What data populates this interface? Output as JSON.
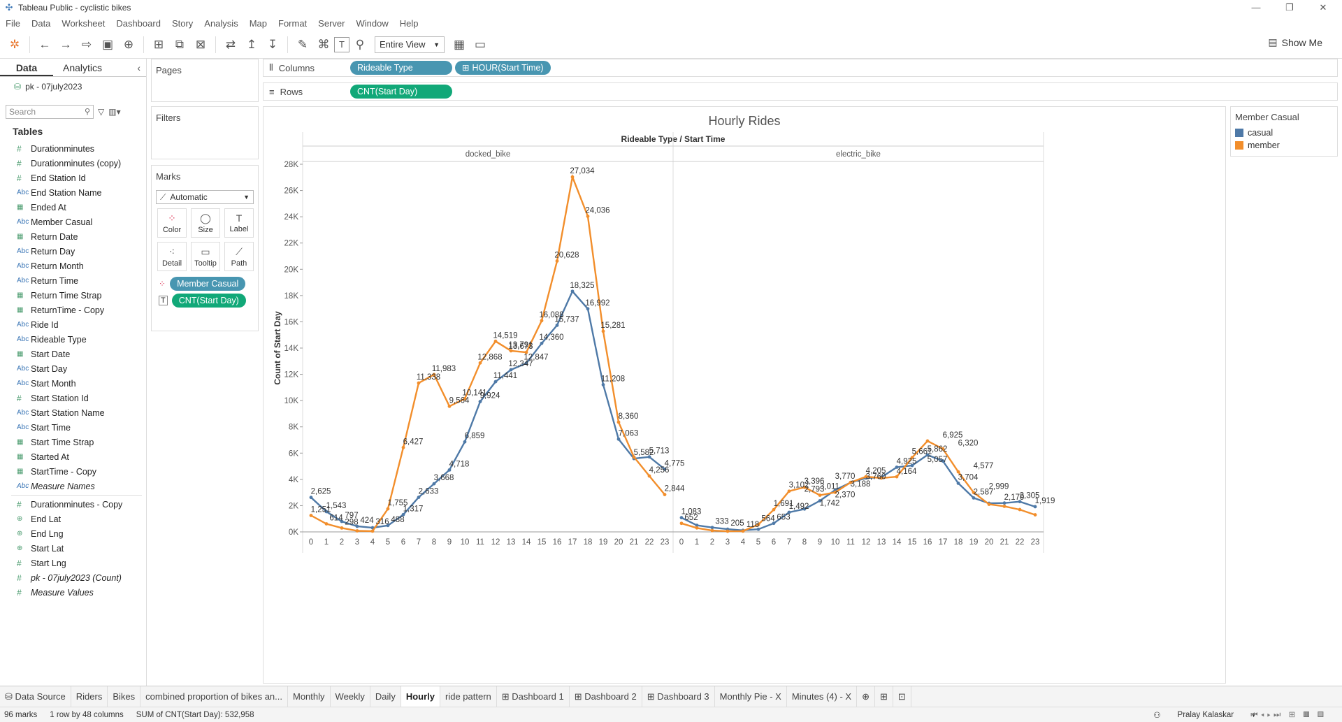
{
  "window": {
    "title": "Tableau Public - cyclistic bikes",
    "minimize": "—",
    "maximize": "❐",
    "close": "✕"
  },
  "menu": [
    "File",
    "Data",
    "Worksheet",
    "Dashboard",
    "Story",
    "Analysis",
    "Map",
    "Format",
    "Server",
    "Window",
    "Help"
  ],
  "toolbar": {
    "view_mode": "Entire View",
    "show_me": "Show Me"
  },
  "left_pane": {
    "tab_data": "Data",
    "tab_analytics": "Analytics",
    "datasource": "pk - 07july2023",
    "search_placeholder": "Search",
    "tables_heading": "Tables",
    "fields": [
      {
        "type": "#",
        "name": "Durationminutes"
      },
      {
        "type": "#",
        "name": "Durationminutes (copy)"
      },
      {
        "type": "#",
        "name": "End Station Id"
      },
      {
        "type": "Abc",
        "name": "End Station Name"
      },
      {
        "type": "date",
        "name": "Ended At"
      },
      {
        "type": "Abc",
        "name": "Member Casual"
      },
      {
        "type": "date",
        "name": "Return Date"
      },
      {
        "type": "Abc",
        "name": "Return Day"
      },
      {
        "type": "Abc",
        "name": "Return Month"
      },
      {
        "type": "Abc",
        "name": "Return Time"
      },
      {
        "type": "date",
        "name": "Return Time Strap"
      },
      {
        "type": "date",
        "name": "ReturnTime - Copy"
      },
      {
        "type": "Abc",
        "name": "Ride Id"
      },
      {
        "type": "Abc",
        "name": "Rideable Type"
      },
      {
        "type": "date",
        "name": "Start Date"
      },
      {
        "type": "Abc",
        "name": "Start Day"
      },
      {
        "type": "Abc",
        "name": "Start Month"
      },
      {
        "type": "#",
        "name": "Start Station Id"
      },
      {
        "type": "Abc",
        "name": "Start Station Name"
      },
      {
        "type": "Abc",
        "name": "Start Time"
      },
      {
        "type": "date",
        "name": "Start Time Strap"
      },
      {
        "type": "date",
        "name": "Started At"
      },
      {
        "type": "date",
        "name": "StartTime - Copy"
      },
      {
        "type": "Abc",
        "name": "Measure Names",
        "italic": true
      }
    ],
    "measures": [
      {
        "type": "#",
        "name": "Durationminutes - Copy"
      },
      {
        "type": "geo",
        "name": "End Lat"
      },
      {
        "type": "geo",
        "name": "End Lng"
      },
      {
        "type": "geo",
        "name": "Start Lat"
      },
      {
        "type": "#",
        "name": "Start Lng"
      },
      {
        "type": "#",
        "name": "pk - 07july2023 (Count)",
        "italic": true
      },
      {
        "type": "#",
        "name": "Measure Values",
        "italic": true
      }
    ]
  },
  "cards": {
    "pages": "Pages",
    "filters": "Filters",
    "marks": "Marks",
    "mark_type": "Automatic",
    "mark_buttons": [
      "Color",
      "Size",
      "Label",
      "Detail",
      "Tooltip",
      "Path"
    ],
    "mark_pills": [
      "Member Casual",
      "CNT(Start Day)"
    ]
  },
  "shelves": {
    "columns_label": "Columns",
    "columns_pills": [
      "Rideable Type",
      "HOUR(Start Time)"
    ],
    "rows_label": "Rows",
    "rows_pills": [
      "CNT(Start Day)"
    ]
  },
  "legend": {
    "title": "Member Casual",
    "items": [
      {
        "label": "casual",
        "color": "#4e79a7"
      },
      {
        "label": "member",
        "color": "#f28e2b"
      }
    ]
  },
  "chart_data": {
    "type": "line",
    "title": "Hourly Rides",
    "header": "Rideable Type  /  Start Time",
    "ylabel": "Count of Start Day",
    "ylim": [
      0,
      28000
    ],
    "yticks": [
      "0K",
      "2K",
      "4K",
      "6K",
      "8K",
      "10K",
      "12K",
      "14K",
      "16K",
      "18K",
      "20K",
      "22K",
      "24K",
      "26K",
      "28K"
    ],
    "panels": [
      {
        "name": "docked_bike",
        "x": [
          0,
          1,
          2,
          3,
          4,
          5,
          6,
          7,
          8,
          9,
          10,
          11,
          12,
          13,
          14,
          15,
          16,
          17,
          18,
          19,
          20,
          21,
          22,
          23
        ],
        "series": [
          {
            "name": "casual",
            "color": "#4e79a7",
            "values": [
              2625,
              1543,
              797,
              424,
              316,
              488,
              1317,
              2633,
              3668,
              4718,
              6859,
              9924,
              11441,
              12347,
              12847,
              14360,
              15737,
              18325,
              16992,
              11208,
              7063,
              5582,
              5713,
              4775
            ]
          },
          {
            "name": "member",
            "color": "#f28e2b",
            "values": [
              1251,
              614,
              298,
              80,
              60,
              1755,
              6427,
              11338,
              11983,
              9564,
              10141,
              12868,
              14519,
              13791,
              13673,
              16088,
              20628,
              27034,
              24036,
              15281,
              8360,
              5700,
              4256,
              2844
            ]
          }
        ]
      },
      {
        "name": "electric_bike",
        "x": [
          0,
          1,
          2,
          3,
          4,
          5,
          6,
          7,
          8,
          9,
          10,
          11,
          12,
          13,
          14,
          15,
          16,
          17,
          18,
          19,
          20,
          21,
          22,
          23
        ],
        "series": [
          {
            "name": "casual",
            "color": "#4e79a7",
            "values": [
              1083,
              500,
              333,
              205,
              118,
              200,
              653,
              1492,
              1742,
              2370,
              3188,
              3760,
              4100,
              4164,
              4925,
              5057,
              5862,
              5400,
              3704,
              2587,
              2179,
              2200,
              2305,
              1919
            ]
          },
          {
            "name": "member",
            "color": "#f28e2b",
            "values": [
              652,
              300,
              100,
              50,
              60,
              564,
              1691,
              3102,
              3396,
              2793,
              3011,
              3770,
              4205,
              4100,
              4200,
              5661,
              6925,
              6320,
              4577,
              2999,
              2100,
              1950,
              1700,
              1300
            ]
          }
        ]
      }
    ],
    "labels": [
      {
        "p": 0,
        "h": 0,
        "v": 2625,
        "t": "2,625"
      },
      {
        "p": 0,
        "h": 1,
        "v": 1543,
        "t": "1,543"
      },
      {
        "p": 0,
        "h": 2,
        "v": 797,
        "t": "797"
      },
      {
        "p": 0,
        "h": 3,
        "v": 424,
        "t": "424"
      },
      {
        "p": 0,
        "h": 4,
        "v": 316,
        "t": "316"
      },
      {
        "p": 0,
        "h": 5,
        "v": 488,
        "t": "488"
      },
      {
        "p": 0,
        "h": 6,
        "v": 1317,
        "t": "1,317"
      },
      {
        "p": 0,
        "h": 7,
        "v": 2633,
        "t": "2,633"
      },
      {
        "p": 0,
        "h": 8,
        "v": 3668,
        "t": "3,668"
      },
      {
        "p": 0,
        "h": 9,
        "v": 4718,
        "t": "4,718"
      },
      {
        "p": 0,
        "h": 10,
        "v": 6859,
        "t": "6,859"
      },
      {
        "p": 0,
        "h": 11,
        "v": 9924,
        "t": "9,924"
      },
      {
        "p": 0,
        "h": 12,
        "v": 11441,
        "t": "11,441"
      },
      {
        "p": 0,
        "h": 13,
        "v": 12347,
        "t": "12,347"
      },
      {
        "p": 0,
        "h": 14,
        "v": 12847,
        "t": "12,847"
      },
      {
        "p": 0,
        "h": 15,
        "v": 14360,
        "t": "14,360"
      },
      {
        "p": 0,
        "h": 16,
        "v": 15737,
        "t": "15,737"
      },
      {
        "p": 0,
        "h": 17,
        "v": 18325,
        "t": "18,325"
      },
      {
        "p": 0,
        "h": 18,
        "v": 16992,
        "t": "16,992"
      },
      {
        "p": 0,
        "h": 19,
        "v": 11208,
        "t": "11,208"
      },
      {
        "p": 0,
        "h": 20,
        "v": 7063,
        "t": "7,063"
      },
      {
        "p": 0,
        "h": 21,
        "v": 5582,
        "t": "5,582"
      },
      {
        "p": 0,
        "h": 22,
        "v": 5713,
        "t": "5,713"
      },
      {
        "p": 0,
        "h": 23,
        "v": 4775,
        "t": "4,775"
      },
      {
        "p": 0,
        "h": 0,
        "v": 1251,
        "t": "1,251"
      },
      {
        "p": 0,
        "h": 1,
        "v": 614,
        "t": "614"
      },
      {
        "p": 0,
        "h": 2,
        "v": 298,
        "t": "298"
      },
      {
        "p": 0,
        "h": 5,
        "v": 1755,
        "t": "1,755"
      },
      {
        "p": 0,
        "h": 6,
        "v": 6427,
        "t": "6,427"
      },
      {
        "p": 0,
        "h": 7,
        "v": 11338,
        "t": "11,338"
      },
      {
        "p": 0,
        "h": 8,
        "v": 11983,
        "t": "11,983"
      },
      {
        "p": 0,
        "h": 9,
        "v": 9564,
        "t": "9,564"
      },
      {
        "p": 0,
        "h": 10,
        "v": 10141,
        "t": "10,141"
      },
      {
        "p": 0,
        "h": 11,
        "v": 12868,
        "t": "12,868"
      },
      {
        "p": 0,
        "h": 12,
        "v": 14519,
        "t": "14,519"
      },
      {
        "p": 0,
        "h": 13,
        "v": 13791,
        "t": "13,791"
      },
      {
        "p": 0,
        "h": 13,
        "v": 13673,
        "t": "13,673"
      },
      {
        "p": 0,
        "h": 15,
        "v": 16088,
        "t": "16,088"
      },
      {
        "p": 0,
        "h": 16,
        "v": 20628,
        "t": "20,628"
      },
      {
        "p": 0,
        "h": 17,
        "v": 27034,
        "t": "27,034"
      },
      {
        "p": 0,
        "h": 18,
        "v": 24036,
        "t": "24,036"
      },
      {
        "p": 0,
        "h": 19,
        "v": 15281,
        "t": "15,281"
      },
      {
        "p": 0,
        "h": 20,
        "v": 8360,
        "t": "8,360"
      },
      {
        "p": 0,
        "h": 22,
        "v": 4256,
        "t": "4,256"
      },
      {
        "p": 0,
        "h": 23,
        "v": 2844,
        "t": "2,844"
      },
      {
        "p": 1,
        "h": 0,
        "v": 1083,
        "t": "1,083"
      },
      {
        "p": 1,
        "h": 0,
        "v": 652,
        "t": "652"
      },
      {
        "p": 1,
        "h": 2,
        "v": 333,
        "t": "333"
      },
      {
        "p": 1,
        "h": 3,
        "v": 205,
        "t": "205"
      },
      {
        "p": 1,
        "h": 4,
        "v": 118,
        "t": "118"
      },
      {
        "p": 1,
        "h": 5,
        "v": 564,
        "t": "564"
      },
      {
        "p": 1,
        "h": 6,
        "v": 653,
        "t": "653"
      },
      {
        "p": 1,
        "h": 6,
        "v": 1691,
        "t": "1,691"
      },
      {
        "p": 1,
        "h": 7,
        "v": 3102,
        "t": "3,102"
      },
      {
        "p": 1,
        "h": 7,
        "v": 1492,
        "t": "1,492"
      },
      {
        "p": 1,
        "h": 8,
        "v": 3396,
        "t": "3,396"
      },
      {
        "p": 1,
        "h": 8,
        "v": 2793,
        "t": "2,793"
      },
      {
        "p": 1,
        "h": 9,
        "v": 3011,
        "t": "3,011"
      },
      {
        "p": 1,
        "h": 9,
        "v": 1742,
        "t": "1,742"
      },
      {
        "p": 1,
        "h": 10,
        "v": 3770,
        "t": "3,770"
      },
      {
        "p": 1,
        "h": 10,
        "v": 2370,
        "t": "2,370"
      },
      {
        "p": 1,
        "h": 11,
        "v": 3188,
        "t": "3,188"
      },
      {
        "p": 1,
        "h": 12,
        "v": 3760,
        "t": "3,760"
      },
      {
        "p": 1,
        "h": 12,
        "v": 4205,
        "t": "4,205"
      },
      {
        "p": 1,
        "h": 14,
        "v": 4925,
        "t": "4,925"
      },
      {
        "p": 1,
        "h": 14,
        "v": 4164,
        "t": "4,164"
      },
      {
        "p": 1,
        "h": 15,
        "v": 5661,
        "t": "5,661"
      },
      {
        "p": 1,
        "h": 16,
        "v": 5862,
        "t": "5,862"
      },
      {
        "p": 1,
        "h": 16,
        "v": 5057,
        "t": "5,057"
      },
      {
        "p": 1,
        "h": 17,
        "v": 6925,
        "t": "6,925"
      },
      {
        "p": 1,
        "h": 18,
        "v": 6320,
        "t": "6,320"
      },
      {
        "p": 1,
        "h": 18,
        "v": 3704,
        "t": "3,704"
      },
      {
        "p": 1,
        "h": 19,
        "v": 4577,
        "t": "4,577"
      },
      {
        "p": 1,
        "h": 19,
        "v": 2587,
        "t": "2,587"
      },
      {
        "p": 1,
        "h": 20,
        "v": 2999,
        "t": "2,999"
      },
      {
        "p": 1,
        "h": 21,
        "v": 2179,
        "t": "2,179"
      },
      {
        "p": 1,
        "h": 22,
        "v": 2305,
        "t": "2,305"
      },
      {
        "p": 1,
        "h": 23,
        "v": 1919,
        "t": "1,919"
      }
    ]
  },
  "sheet_tabs": [
    "Data Source",
    "Riders",
    "Bikes",
    "combined proportion of bikes an...",
    "Monthly",
    "Weekly",
    "Daily",
    "Hourly",
    "ride pattern",
    "Dashboard 1",
    "Dashboard 2",
    "Dashboard 3",
    "Monthly Pie - X",
    "Minutes (4) - X"
  ],
  "active_tab": "Hourly",
  "status": {
    "marks": "96 marks",
    "layout": "1 row by 48 columns",
    "sum": "SUM of CNT(Start Day): 532,958",
    "user": "Pralay Kalaskar"
  }
}
